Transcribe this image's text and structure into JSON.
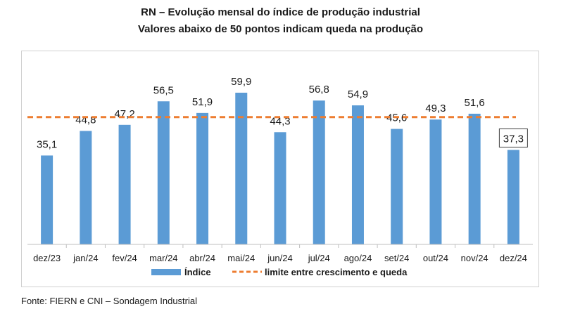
{
  "title": "RN – Evolução mensal do índice de produção industrial",
  "subtitle": "Valores abaixo de 50 pontos indicam queda na produção",
  "source": "Fonte: FIERN e CNI – Sondagem Industrial",
  "colors": {
    "bar": "#5b9bd5",
    "threshold_line": "#ed7d31",
    "axis": "#bfbfbf"
  },
  "chart_data": {
    "type": "bar",
    "categories": [
      "dez/23",
      "jan/24",
      "fev/24",
      "mar/24",
      "abr/24",
      "mai/24",
      "jun/24",
      "jul/24",
      "ago/24",
      "set/24",
      "out/24",
      "nov/24",
      "dez/24"
    ],
    "series": [
      {
        "name": "Índice",
        "values": [
          35.1,
          44.8,
          47.2,
          56.5,
          51.9,
          59.9,
          44.3,
          56.8,
          54.9,
          45.6,
          49.3,
          51.6,
          37.3
        ]
      }
    ],
    "data_labels": [
      "35,1",
      "44,8",
      "47,2",
      "56,5",
      "51,9",
      "59,9",
      "44,3",
      "56,8",
      "54,9",
      "45,6",
      "49,3",
      "51,6",
      "37,3"
    ],
    "highlighted_label_index": 12,
    "threshold": {
      "name": "limite entre crescimento e queda",
      "value": 50
    },
    "ylim": [
      0,
      60
    ],
    "grid": false,
    "legend_position": "bottom"
  }
}
